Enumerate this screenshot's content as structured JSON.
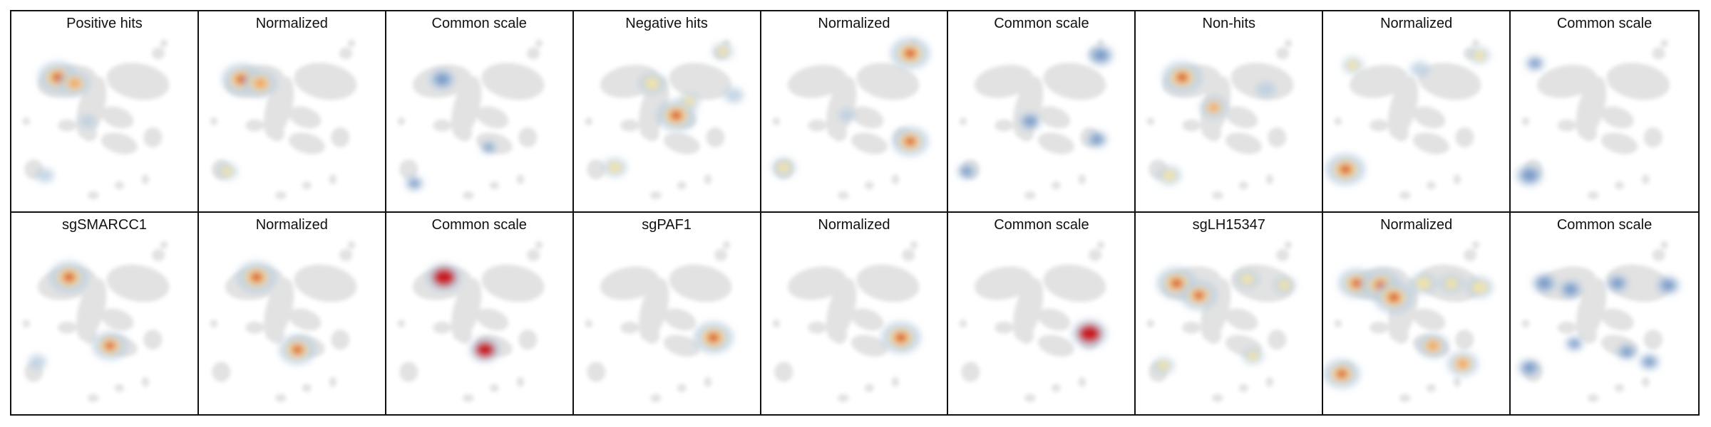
{
  "palette": {
    "background_map": "#e2e2e2",
    "low": "#b9cde0",
    "common_blue": "#6f94c6",
    "mid": "#f6e7a0",
    "high_orange": "#f29a4c",
    "peak_red": "#c81f24"
  },
  "panels": [
    {
      "title": "Positive hits",
      "style": "density",
      "hotspots": [
        [
          0.25,
          0.33,
          1.0
        ],
        [
          0.34,
          0.36,
          0.7
        ],
        [
          0.18,
          0.82,
          0.25
        ],
        [
          0.41,
          0.55,
          0.2
        ]
      ]
    },
    {
      "title": "Normalized",
      "style": "density",
      "hotspots": [
        [
          0.23,
          0.34,
          1.0
        ],
        [
          0.33,
          0.36,
          0.8
        ],
        [
          0.15,
          0.8,
          0.35
        ]
      ]
    },
    {
      "title": "Common scale",
      "style": "common",
      "hotspots": [
        [
          0.3,
          0.34,
          0.7
        ],
        [
          0.15,
          0.86,
          0.35
        ],
        [
          0.55,
          0.68,
          0.25
        ]
      ]
    },
    {
      "title": "Negative hits",
      "style": "density",
      "hotspots": [
        [
          0.55,
          0.52,
          1.0
        ],
        [
          0.42,
          0.36,
          0.55
        ],
        [
          0.22,
          0.78,
          0.45
        ],
        [
          0.62,
          0.45,
          0.35
        ],
        [
          0.8,
          0.2,
          0.35
        ],
        [
          0.86,
          0.42,
          0.3
        ]
      ]
    },
    {
      "title": "Normalized",
      "style": "density",
      "hotspots": [
        [
          0.8,
          0.21,
          1.0
        ],
        [
          0.8,
          0.65,
          0.9
        ],
        [
          0.12,
          0.78,
          0.45
        ],
        [
          0.46,
          0.52,
          0.2
        ]
      ]
    },
    {
      "title": "Common scale",
      "style": "common",
      "hotspots": [
        [
          0.82,
          0.22,
          0.7
        ],
        [
          0.44,
          0.55,
          0.55
        ],
        [
          0.8,
          0.64,
          0.5
        ],
        [
          0.1,
          0.8,
          0.4
        ]
      ]
    },
    {
      "title": "Non-hits",
      "style": "density",
      "hotspots": [
        [
          0.25,
          0.33,
          1.0
        ],
        [
          0.42,
          0.48,
          0.6
        ],
        [
          0.18,
          0.82,
          0.45
        ],
        [
          0.7,
          0.39,
          0.3
        ]
      ]
    },
    {
      "title": "Normalized",
      "style": "density",
      "hotspots": [
        [
          0.12,
          0.79,
          1.0
        ],
        [
          0.16,
          0.27,
          0.35
        ],
        [
          0.52,
          0.29,
          0.3
        ],
        [
          0.84,
          0.22,
          0.35
        ]
      ]
    },
    {
      "title": "Common scale",
      "style": "common",
      "hotspots": [
        [
          0.1,
          0.82,
          0.75
        ],
        [
          0.13,
          0.26,
          0.4
        ]
      ]
    },
    {
      "title": "sgSMARCC1",
      "style": "density",
      "hotspots": [
        [
          0.31,
          0.32,
          1.0
        ],
        [
          0.53,
          0.66,
          0.85
        ],
        [
          0.14,
          0.74,
          0.25
        ]
      ]
    },
    {
      "title": "Normalized",
      "style": "density",
      "hotspots": [
        [
          0.31,
          0.32,
          1.0
        ],
        [
          0.53,
          0.68,
          0.9
        ]
      ]
    },
    {
      "title": "Common scale",
      "style": "common-red",
      "hotspots": [
        [
          0.31,
          0.32,
          1.0
        ],
        [
          0.53,
          0.68,
          0.85
        ]
      ]
    },
    {
      "title": "sgPAF1",
      "style": "density",
      "hotspots": [
        [
          0.75,
          0.62,
          1.0
        ]
      ]
    },
    {
      "title": "Normalized",
      "style": "density",
      "hotspots": [
        [
          0.75,
          0.62,
          1.0
        ]
      ]
    },
    {
      "title": "Common scale",
      "style": "common-red",
      "hotspots": [
        [
          0.76,
          0.6,
          1.0
        ]
      ]
    },
    {
      "title": "sgLH15347",
      "style": "density",
      "hotspots": [
        [
          0.22,
          0.35,
          1.0
        ],
        [
          0.34,
          0.41,
          0.9
        ],
        [
          0.6,
          0.33,
          0.45
        ],
        [
          0.8,
          0.36,
          0.4
        ],
        [
          0.15,
          0.76,
          0.35
        ],
        [
          0.63,
          0.71,
          0.35
        ]
      ]
    },
    {
      "title": "Normalized",
      "style": "density",
      "hotspots": [
        [
          0.18,
          0.35,
          0.9
        ],
        [
          0.31,
          0.36,
          1.0
        ],
        [
          0.38,
          0.42,
          1.0
        ],
        [
          0.54,
          0.35,
          0.55
        ],
        [
          0.84,
          0.37,
          0.55
        ],
        [
          0.69,
          0.35,
          0.45
        ],
        [
          0.1,
          0.8,
          0.9
        ],
        [
          0.59,
          0.66,
          0.7
        ],
        [
          0.75,
          0.75,
          0.7
        ]
      ]
    },
    {
      "title": "Common scale",
      "style": "common",
      "hotspots": [
        [
          0.18,
          0.35,
          0.65
        ],
        [
          0.32,
          0.38,
          0.6
        ],
        [
          0.57,
          0.35,
          0.55
        ],
        [
          0.84,
          0.36,
          0.6
        ],
        [
          0.1,
          0.77,
          0.55
        ],
        [
          0.34,
          0.65,
          0.35
        ],
        [
          0.62,
          0.69,
          0.45
        ],
        [
          0.74,
          0.74,
          0.45
        ]
      ]
    }
  ]
}
